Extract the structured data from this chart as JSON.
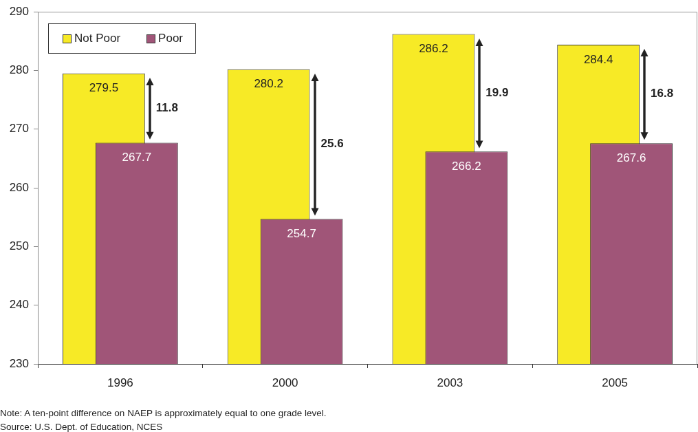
{
  "chart_data": {
    "type": "bar",
    "categories": [
      "1996",
      "2000",
      "2003",
      "2005"
    ],
    "series": [
      {
        "name": "Not Poor",
        "color": "#f7ea26",
        "values": [
          279.5,
          280.2,
          286.2,
          284.4
        ]
      },
      {
        "name": "Poor",
        "color": "#a05578",
        "values": [
          267.7,
          254.7,
          266.2,
          267.6
        ]
      }
    ],
    "ylim": [
      230,
      290
    ],
    "yticks": [
      230,
      240,
      250,
      260,
      270,
      280,
      290
    ],
    "grid": false,
    "legend": "top left",
    "data_labels": true,
    "annotations": [
      "11.8",
      "25.6",
      "19.9",
      "16.8",
      "Note: A ten-point difference on NAEP is approximately equal to one grade level.",
      "Source: U.S. Dept. of Education, NCES"
    ]
  }
}
